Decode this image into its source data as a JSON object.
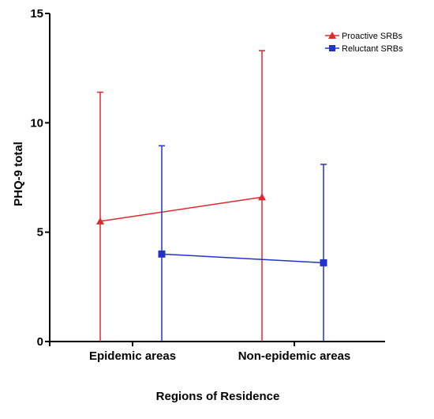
{
  "chart_data": {
    "type": "line",
    "title": "",
    "xlabel": "Regions of Residence",
    "ylabel": "PHQ-9 total",
    "categories": [
      "Epidemic areas",
      "Non-epidemic areas"
    ],
    "ylim": [
      0,
      15
    ],
    "yticks": [
      0,
      5,
      10,
      15
    ],
    "grid": false,
    "legend_position": "top-right",
    "series": [
      {
        "name": "Proactive SRBs",
        "color": "#e0282e",
        "marker": "triangle",
        "values": [
          5.5,
          6.6
        ],
        "error_upper": [
          11.4,
          13.3
        ],
        "error_lower": [
          0,
          0
        ]
      },
      {
        "name": "Reluctant SRBs",
        "color": "#2233cc",
        "marker": "square",
        "values": [
          4.0,
          3.6
        ],
        "error_upper": [
          8.95,
          8.1
        ],
        "error_lower": [
          0,
          0
        ]
      }
    ]
  }
}
